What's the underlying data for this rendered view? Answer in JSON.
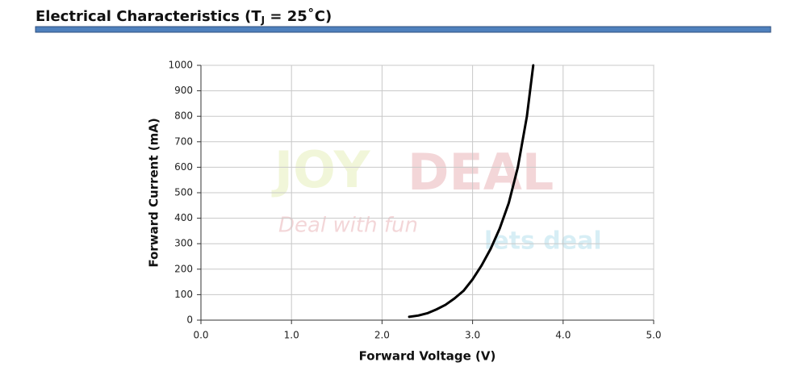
{
  "header": {
    "title": "Electrical Characteristics (T",
    "title_sub": "J",
    "title_rest": " = 25˚C)"
  },
  "watermark": [
    "JOY",
    "DEAL",
    "Deal with fun",
    "lets deal"
  ],
  "chart_data": {
    "type": "line",
    "x_label": "Forward Voltage (V)",
    "y_label": "Forward Current (mA)",
    "x": [
      2.3,
      2.4,
      2.5,
      2.6,
      2.7,
      2.8,
      2.9,
      3.0,
      3.1,
      3.2,
      3.3,
      3.4,
      3.5,
      3.6,
      3.67
    ],
    "series": [
      {
        "name": "Forward Current",
        "color": "#000000",
        "values": [
          13,
          18,
          27,
          42,
          60,
          85,
          115,
          160,
          215,
          280,
          360,
          460,
          600,
          800,
          1000
        ]
      }
    ],
    "xlim": [
      0,
      5
    ],
    "ylim": [
      0,
      1000
    ],
    "xticks": [
      {
        "value": 0,
        "label": "0.0"
      },
      {
        "value": 1,
        "label": "1.0"
      },
      {
        "value": 2,
        "label": "2.0"
      },
      {
        "value": 3,
        "label": "3.0"
      },
      {
        "value": 4,
        "label": "4.0"
      },
      {
        "value": 5,
        "label": "5.0"
      }
    ],
    "yticks": [
      0,
      100,
      200,
      300,
      400,
      500,
      600,
      700,
      800,
      900,
      1000
    ],
    "grid": true
  }
}
